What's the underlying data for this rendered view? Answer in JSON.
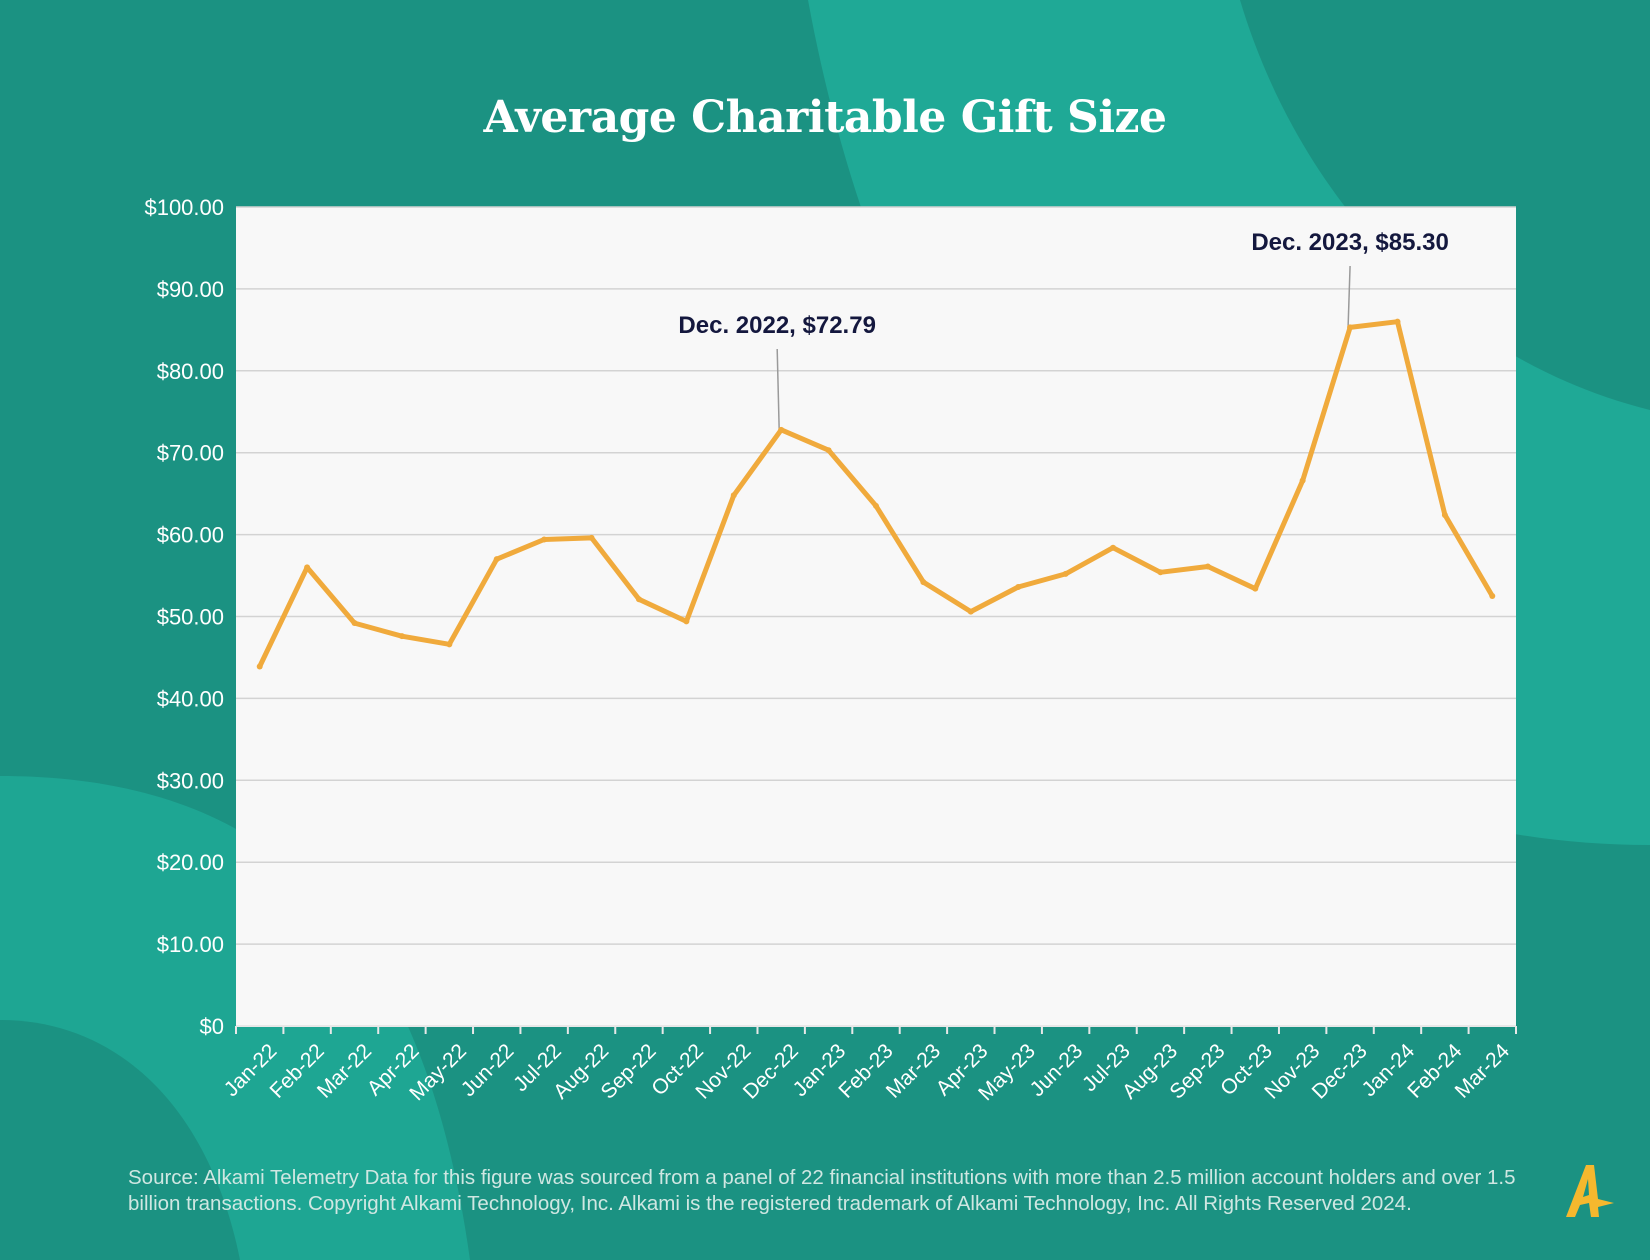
{
  "title": "Average Charitable Gift Size",
  "source": "Source:  Alkami Telemetry Data for this figure was sourced from a panel of 22 financial institutions with more than 2.5 million account holders and over 1.5 billion transactions. Copyright Alkami Technology, Inc. Alkami is the registered trademark of Alkami Technology, Inc. All Rights Reserved 2024.",
  "colors": {
    "background": "#1b9282",
    "background_accent": "#1fa996",
    "plot_area": "#f8f8f8",
    "line": "#f0aa3c",
    "annotation_text": "#14183e",
    "axis_text": "#ffffff",
    "logo": "#f5b82e"
  },
  "logo_icon": "alkami-a-logo",
  "chart_data": {
    "type": "line",
    "title": "Average Charitable Gift Size",
    "xlabel": "",
    "ylabel": "",
    "ylim": [
      0,
      100
    ],
    "yticks": [
      "$0",
      "$10.00",
      "$20.00",
      "$30.00",
      "$40.00",
      "$50.00",
      "$60.00",
      "$70.00",
      "$80.00",
      "$90.00",
      "$100.00"
    ],
    "grid": true,
    "legend": "none",
    "categories": [
      "Jan-22",
      "Feb-22",
      "Mar-22",
      "Apr-22",
      "May-22",
      "Jun-22",
      "Jul-22",
      "Aug-22",
      "Sep-22",
      "Oct-22",
      "Nov-22",
      "Dec-22",
      "Jan-23",
      "Feb-23",
      "Mar-23",
      "Apr-23",
      "May-23",
      "Jun-23",
      "Jul-23",
      "Aug-23",
      "Sep-23",
      "Oct-23",
      "Nov-23",
      "Dec-23",
      "Jan-24",
      "Feb-24",
      "Mar-24"
    ],
    "series": [
      {
        "values": [
          43.9,
          56.0,
          49.2,
          47.6,
          46.6,
          57.0,
          59.4,
          59.6,
          52.1,
          49.4,
          64.8,
          72.79,
          70.3,
          63.5,
          54.2,
          50.6,
          53.6,
          55.2,
          58.4,
          55.4,
          56.1,
          53.4,
          66.6,
          85.3,
          86.0,
          62.4,
          52.5
        ]
      }
    ],
    "annotations": [
      {
        "text": "Dec. 2022, $72.79",
        "category": "Dec-22",
        "value": 72.79
      },
      {
        "text": "Dec. 2023, $85.30",
        "category": "Dec-23",
        "value": 85.3
      }
    ]
  }
}
